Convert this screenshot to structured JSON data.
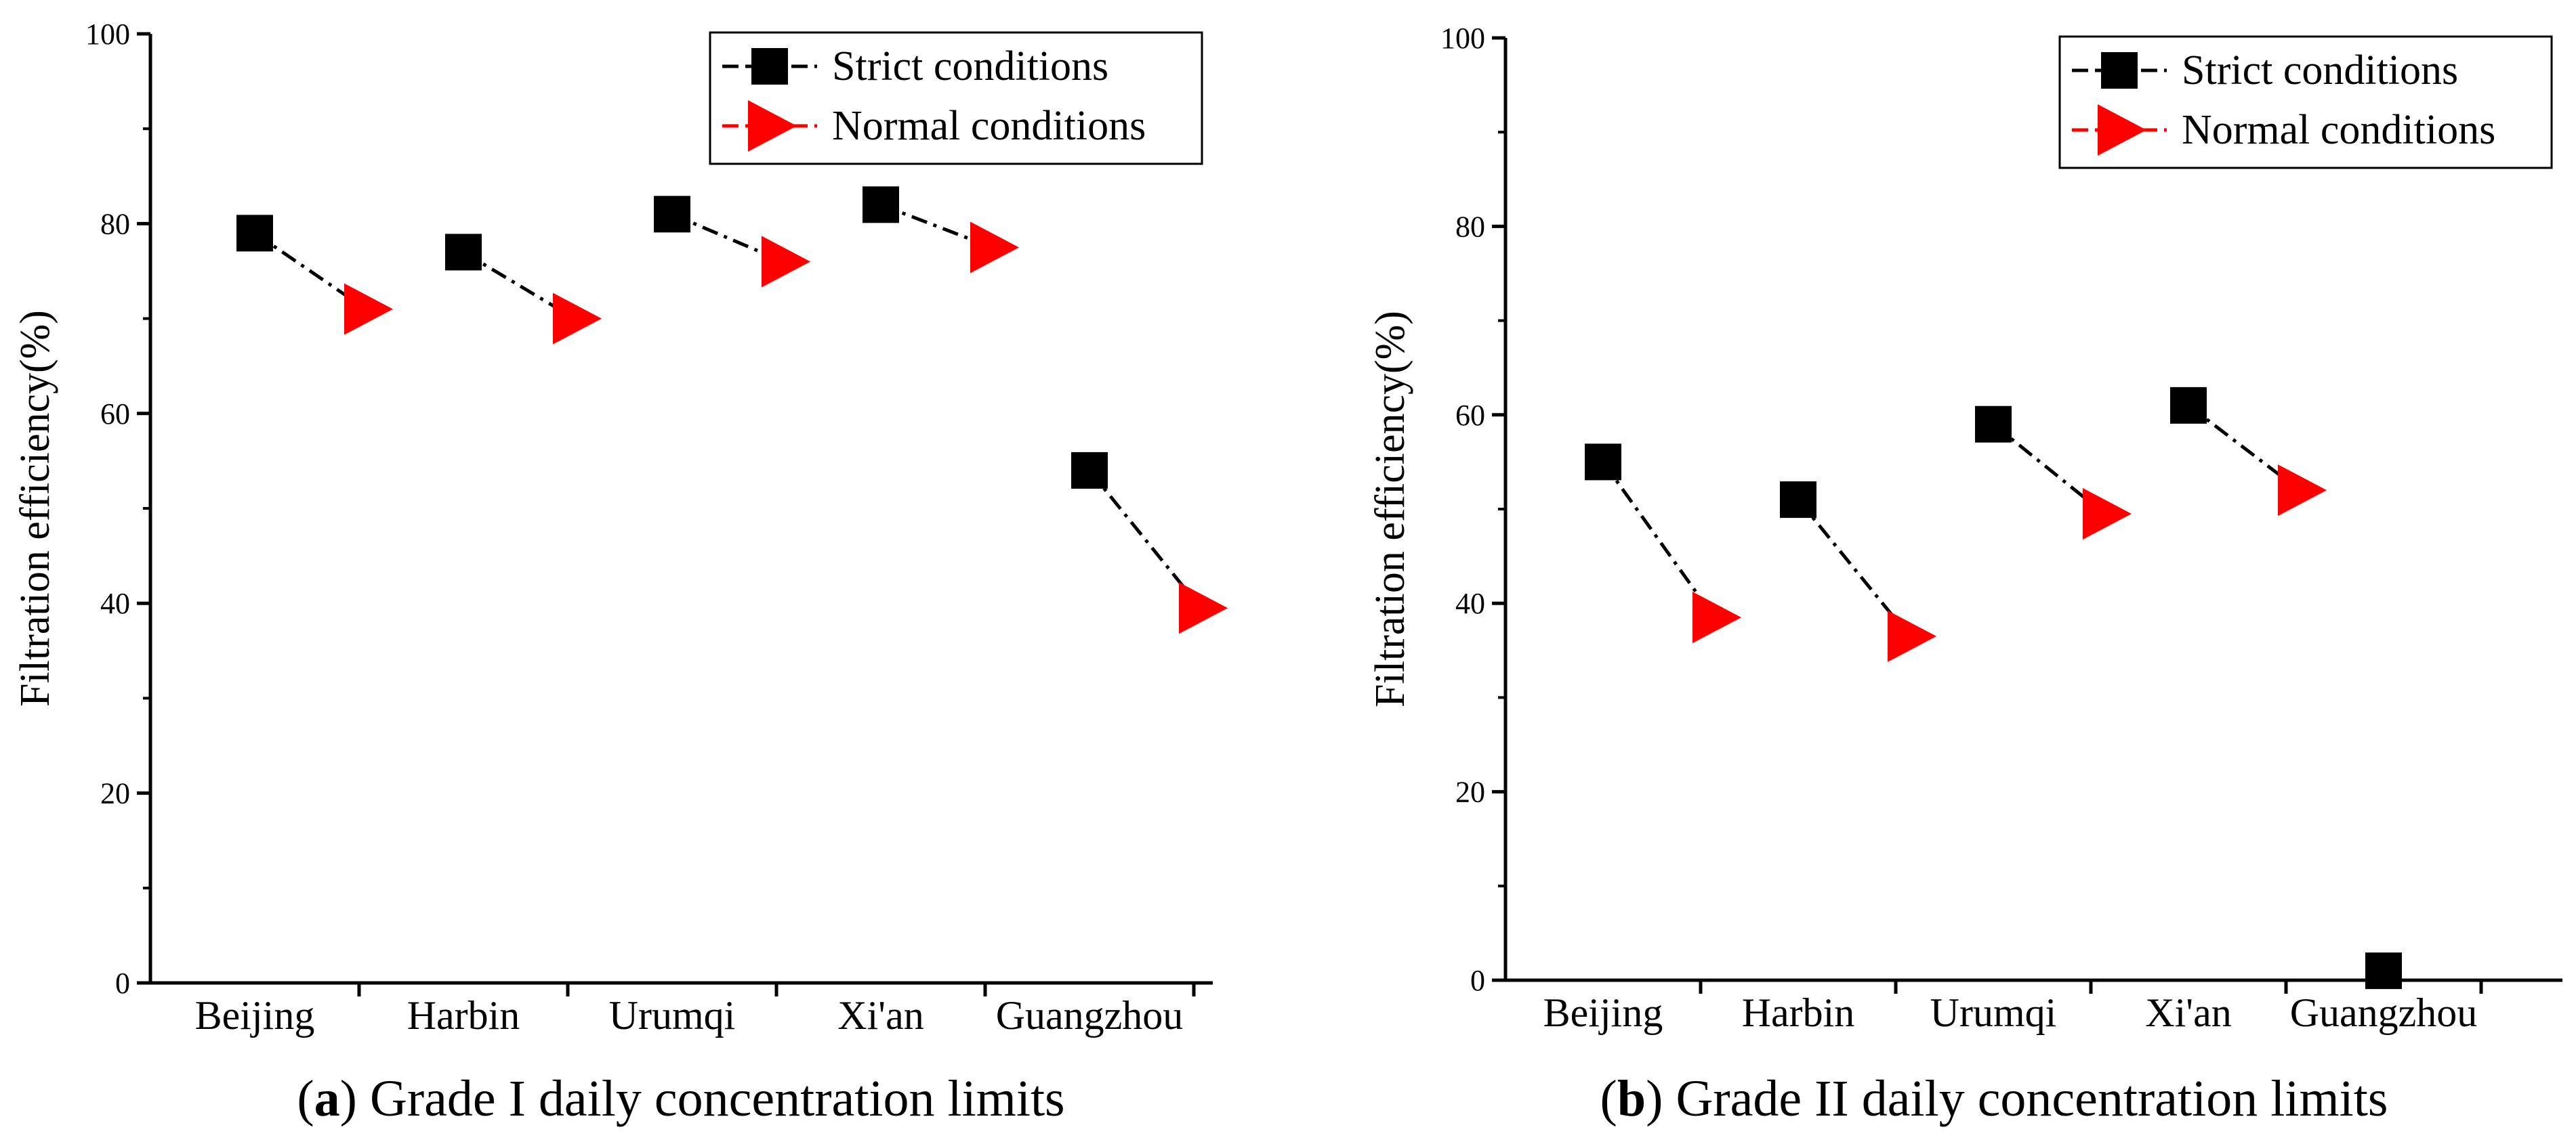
{
  "chart_data": [
    {
      "type": "scatter",
      "panel_label": "a",
      "caption": "Grade I daily concentration limits",
      "ylabel": "Filtration efficiency(%)",
      "categories": [
        "Beijing",
        "Harbin",
        "Urumqi",
        "Xi'an",
        "Guangzhou"
      ],
      "ylim": [
        0,
        100
      ],
      "yticks": [
        "0",
        "20",
        "40",
        "60",
        "80",
        "100"
      ],
      "legend_position": "top-right",
      "series": [
        {
          "name": "Strict conditions",
          "marker": "square",
          "color": "#000000",
          "values": [
            79,
            77,
            81,
            82,
            54
          ]
        },
        {
          "name": "Normal conditions",
          "marker": "triangle-right",
          "color": "#ff0000",
          "values": [
            71,
            70,
            76,
            77.5,
            39.5
          ]
        }
      ]
    },
    {
      "type": "scatter",
      "panel_label": "b",
      "caption": "Grade II daily concentration limits",
      "ylabel": "Filtration efficiency(%)",
      "categories": [
        "Beijing",
        "Harbin",
        "Urumqi",
        "Xi'an",
        "Guangzhou"
      ],
      "ylim": [
        0,
        100
      ],
      "yticks": [
        "0",
        "20",
        "40",
        "60",
        "80",
        "100"
      ],
      "legend_position": "top-right",
      "series": [
        {
          "name": "Strict conditions",
          "marker": "square",
          "color": "#000000",
          "values": [
            55,
            51,
            59,
            61,
            1
          ]
        },
        {
          "name": "Normal conditions",
          "marker": "triangle-right",
          "color": "#ff0000",
          "values": [
            38.5,
            36.5,
            49.5,
            52,
            null
          ]
        }
      ]
    }
  ]
}
